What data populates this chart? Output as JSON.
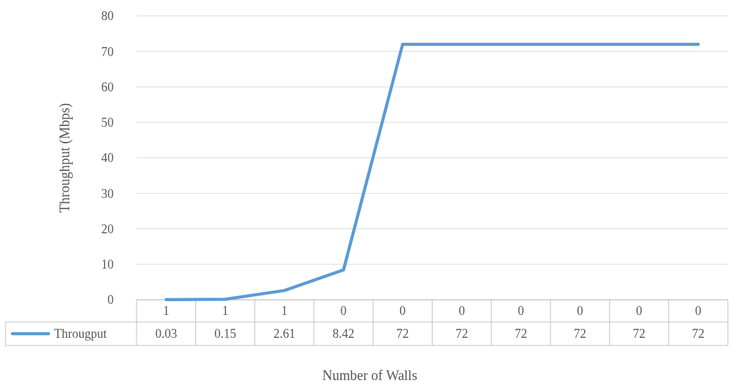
{
  "chart_data": {
    "type": "line",
    "xlabel": "Number of Walls",
    "ylabel": "Throughput (Mbps)",
    "categories": [
      "1",
      "1",
      "1",
      "0",
      "0",
      "0",
      "0",
      "0",
      "0",
      "0"
    ],
    "series": [
      {
        "name": "Througput",
        "color": "#5b9bd5",
        "values": [
          0.03,
          0.15,
          2.61,
          8.42,
          72,
          72,
          72,
          72,
          72,
          72
        ]
      }
    ],
    "ylim": [
      0,
      80
    ],
    "yticks": [
      0,
      10,
      20,
      30,
      40,
      50,
      60,
      70,
      80
    ],
    "grid": "y",
    "legend": "bottom",
    "data_labels": true,
    "marker": "none",
    "line_style": "solid"
  }
}
